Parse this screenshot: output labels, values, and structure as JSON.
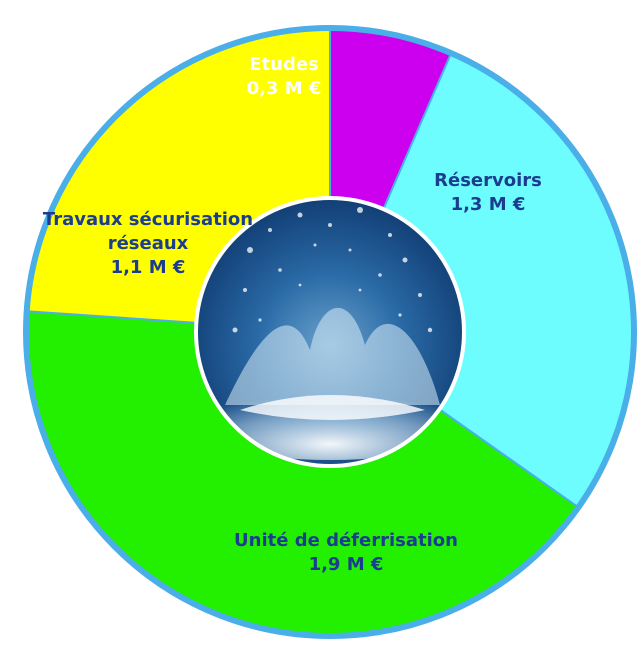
{
  "chart_data": {
    "type": "pie",
    "style": "donut",
    "title": "",
    "unit": "M €",
    "center_image": "water-splash",
    "slices": [
      {
        "label": "Etudes",
        "value_text": "0,3 M €",
        "value": 0.3,
        "color": "#cc00ee",
        "label_color": "#ffffff"
      },
      {
        "label": "Réservoirs",
        "value_text": "1,3 M €",
        "value": 1.3,
        "color": "#6dfdff",
        "label_color": "#1b3d8f"
      },
      {
        "label": "Unité de déferrisation",
        "value_text": "1,9 M €",
        "value": 1.9,
        "color": "#22f000",
        "label_color": "#1b3d8f"
      },
      {
        "label": "Travaux sécurisation réseaux",
        "value_text": "1,1 M €",
        "value": 1.1,
        "color": "#ffff00",
        "label_color": "#1b3d8f"
      }
    ],
    "colors": {
      "ring_border": "#4aaee8",
      "divider": "#4aaee8",
      "center_dark": "#0f3a72",
      "center_light": "#7fb4d8"
    }
  }
}
